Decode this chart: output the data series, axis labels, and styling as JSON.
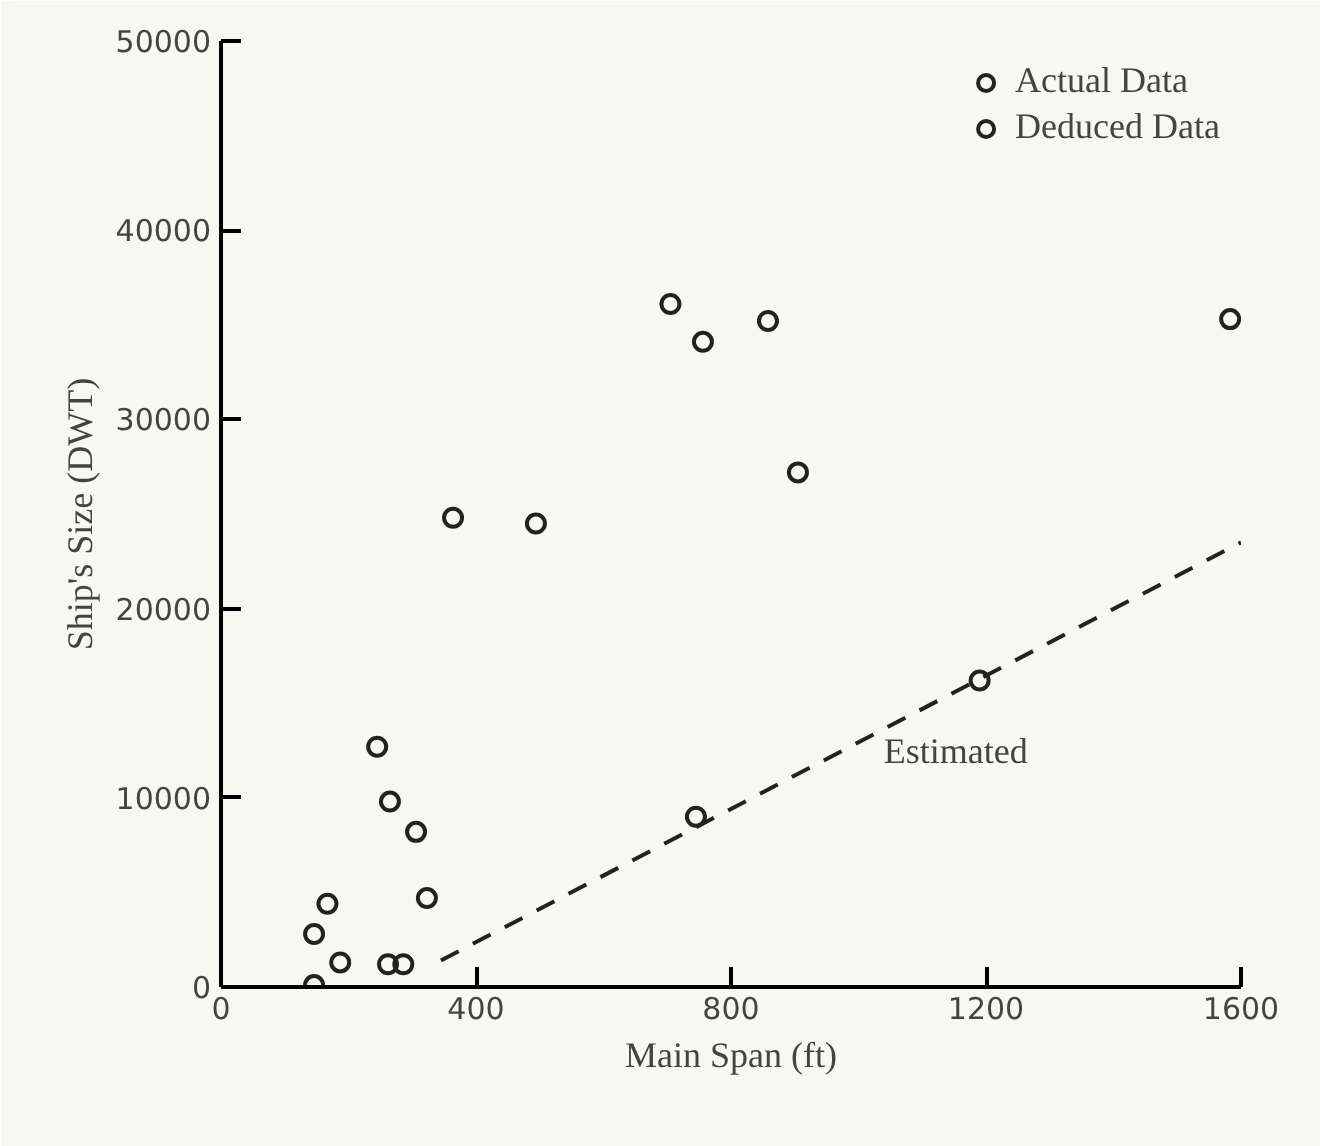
{
  "chart_data": {
    "type": "scatter",
    "xlabel": "Main Span (ft)",
    "ylabel": "Ship's Size (DWT)",
    "xlim": [
      0,
      1600
    ],
    "xticks": [
      0,
      400,
      800,
      1200,
      1600
    ],
    "ylim": [
      0,
      50000
    ],
    "yticks": [
      0,
      10000,
      20000,
      30000,
      40000,
      50000
    ],
    "grid": false,
    "legend": "top right",
    "series": [
      {
        "name": "Actual Data",
        "marker": "circle",
        "color": "#222222",
        "x": [
          146,
          146,
          167,
          187,
          245,
          265,
          262,
          286,
          323,
          364,
          494,
          705,
          858,
          905,
          1190
        ],
        "values": [
          100,
          2800,
          4400,
          1300,
          12700,
          9800,
          1200,
          1200,
          4700,
          24800,
          24500,
          36100,
          35200,
          27200,
          16200
        ]
      },
      {
        "name": "Deduced Data",
        "marker": "circle",
        "color": "#222222",
        "x": [
          306,
          745,
          756,
          1583
        ],
        "values": [
          8200,
          9000,
          34100,
          35300
        ]
      },
      {
        "name": "Estimated",
        "type": "line",
        "line_style": "dashed",
        "color": "#222222",
        "x": [
          345,
          1600
        ],
        "values": [
          1400,
          23500
        ]
      }
    ]
  }
}
